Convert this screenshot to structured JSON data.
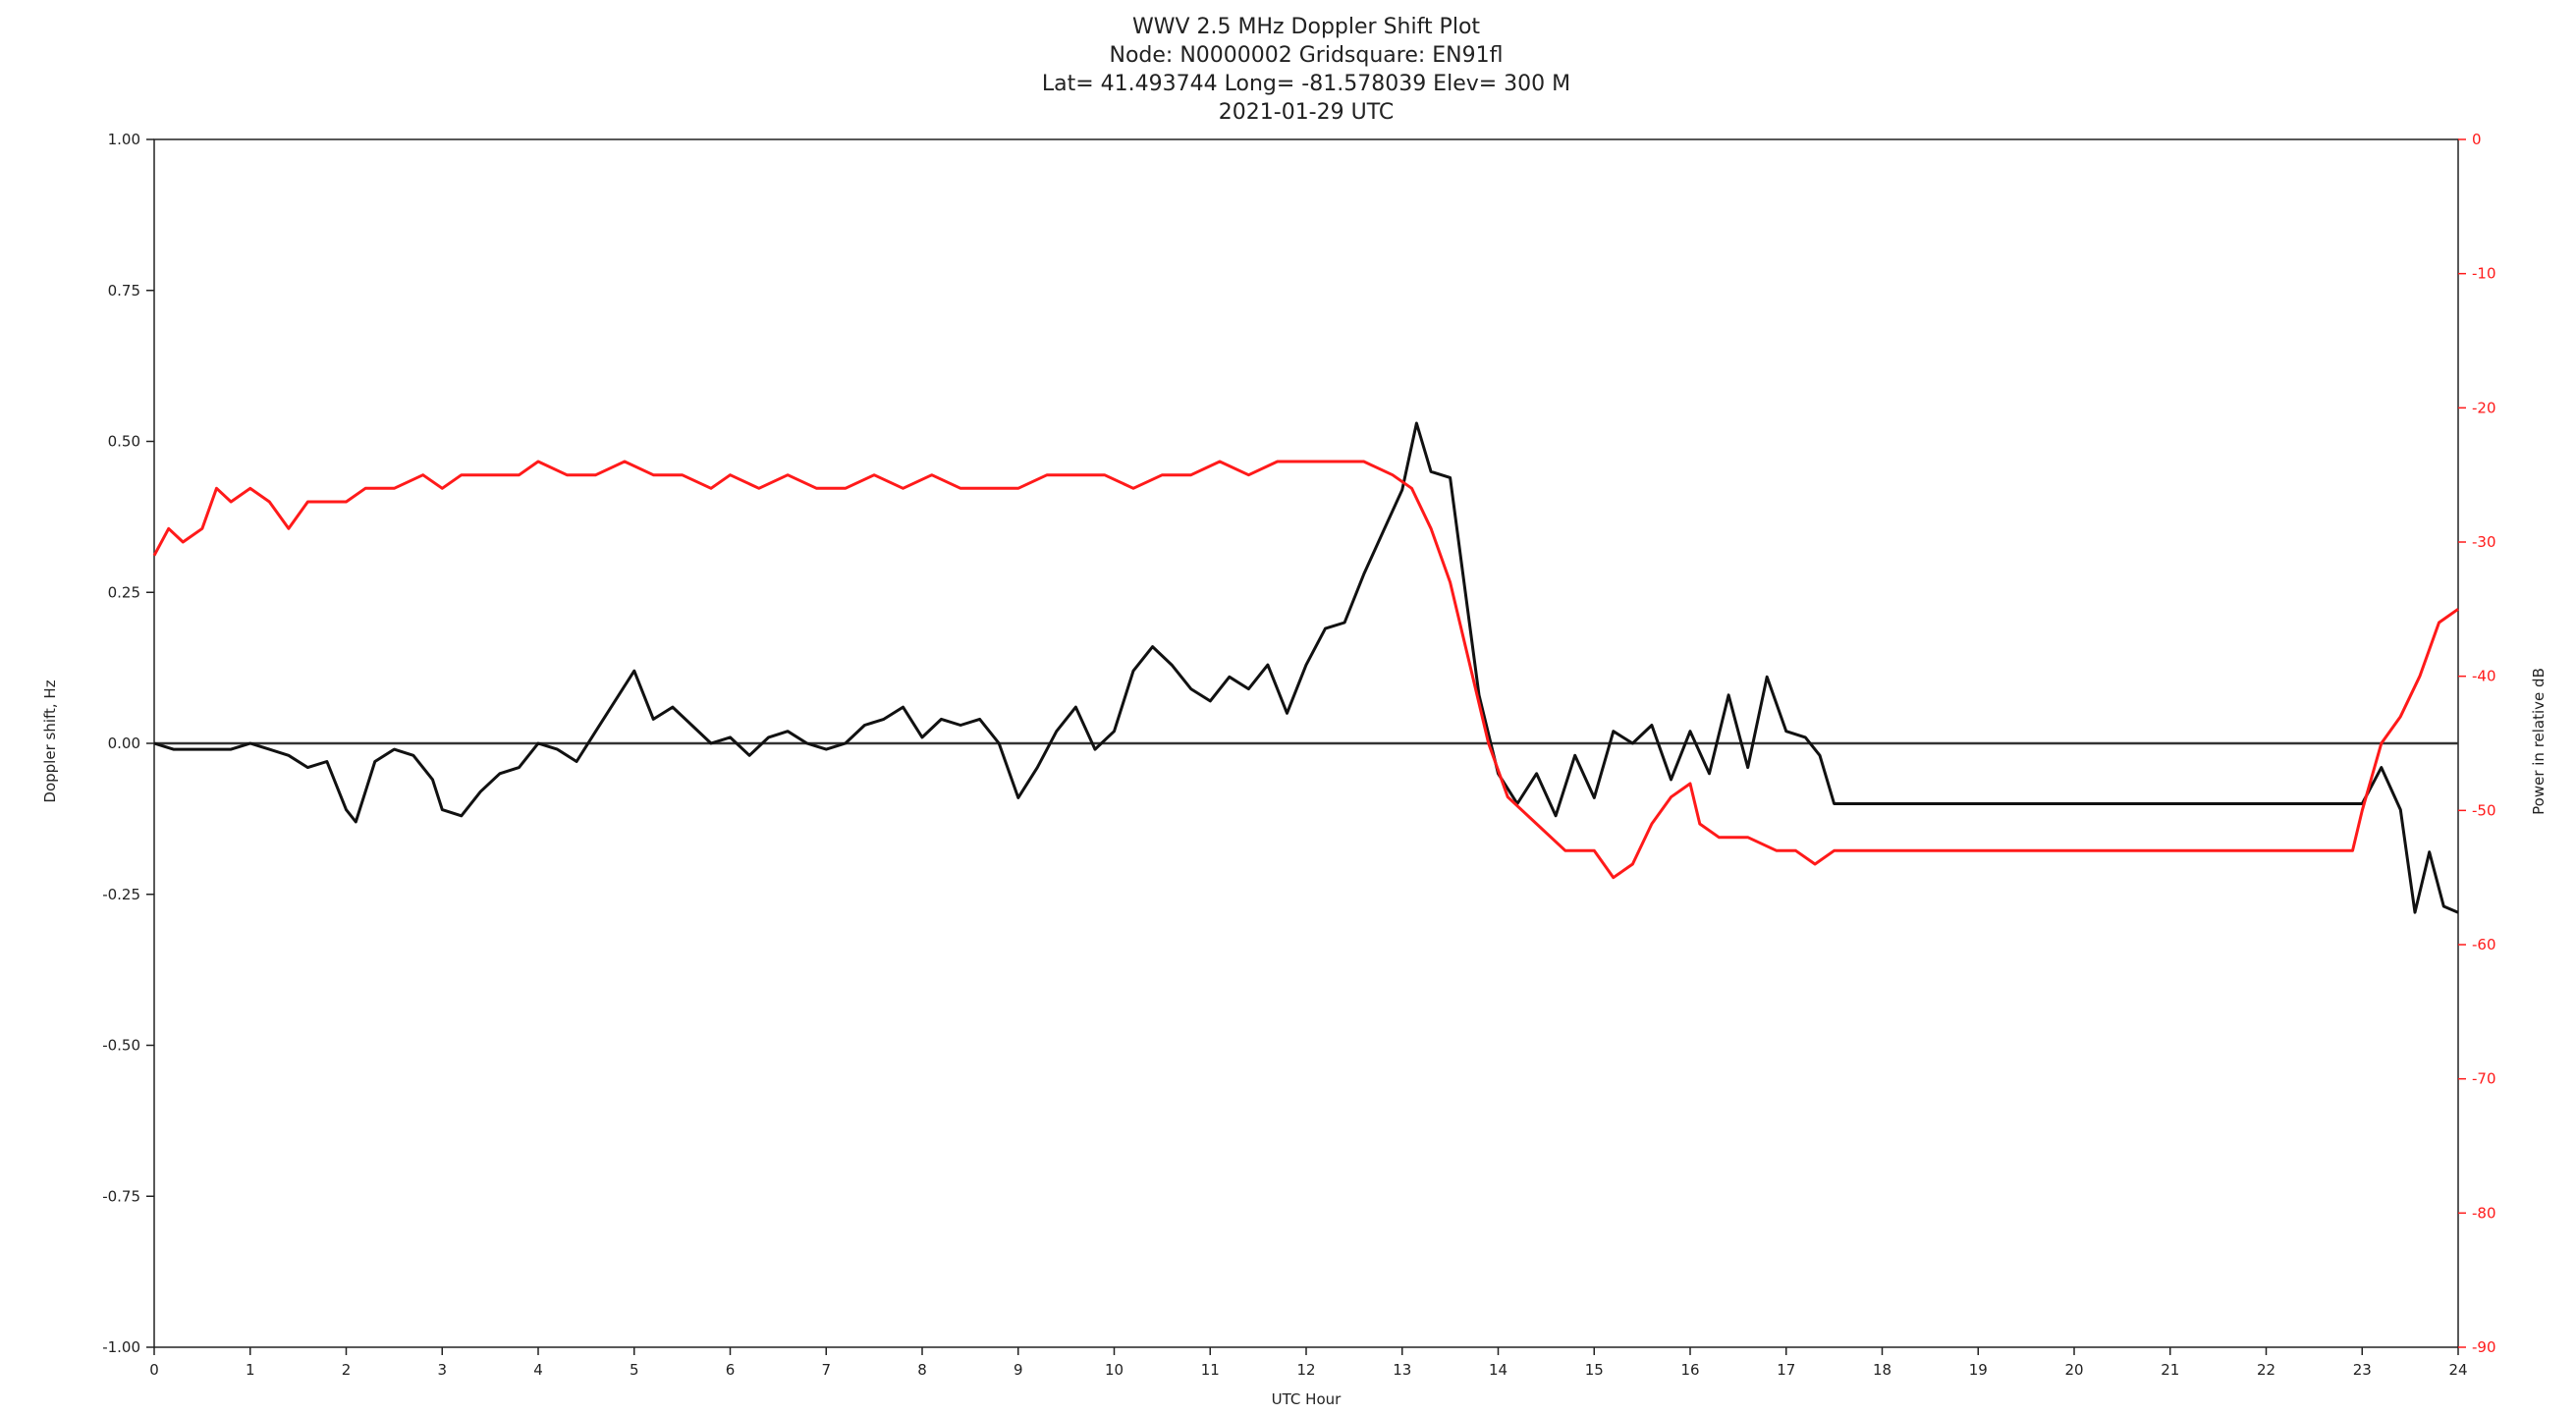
{
  "chart_data": {
    "type": "line",
    "title_lines": [
      "WWV 2.5 MHz Doppler Shift Plot",
      "Node:  N0000002     Gridsquare:  EN91fl",
      "Lat= 41.493744     Long= -81.578039     Elev=  300 M",
      "2021-01-29  UTC"
    ],
    "xlabel": "UTC Hour",
    "ylabel_left": "Doppler shift, Hz",
    "ylabel_right": "Power in relative dB",
    "xlim": [
      0,
      24
    ],
    "ylim_left": [
      -1.0,
      1.0
    ],
    "ylim_right": [
      -90,
      0
    ],
    "x_ticks": [
      "0",
      "1",
      "2",
      "3",
      "4",
      "5",
      "6",
      "7",
      "8",
      "9",
      "10",
      "11",
      "12",
      "13",
      "14",
      "15",
      "16",
      "17",
      "18",
      "19",
      "20",
      "21",
      "22",
      "23",
      "24"
    ],
    "y_ticks_left": [
      "1.00",
      "0.75",
      "0.50",
      "0.25",
      "0.00",
      "-0.25",
      "-0.50",
      "-0.75",
      "-1.00"
    ],
    "y_ticks_right": [
      "0",
      "-10",
      "-20",
      "-30",
      "-40",
      "-50",
      "-60",
      "-70",
      "-80",
      "-90"
    ],
    "grid": false,
    "reference_line": {
      "y": 0.0,
      "color": "#333333"
    },
    "colors": {
      "doppler": "#111111",
      "power": "#ff1a1a",
      "axes": "#222222",
      "right_axis_text": "#ff1a1a"
    },
    "series": [
      {
        "axis": "left",
        "color": "#111111",
        "points": [
          [
            0.0,
            0.0
          ],
          [
            0.2,
            -0.01
          ],
          [
            0.5,
            -0.01
          ],
          [
            0.8,
            -0.01
          ],
          [
            1.0,
            0.0
          ],
          [
            1.2,
            -0.01
          ],
          [
            1.4,
            -0.02
          ],
          [
            1.6,
            -0.04
          ],
          [
            1.8,
            -0.03
          ],
          [
            1.9,
            -0.07
          ],
          [
            2.0,
            -0.11
          ],
          [
            2.1,
            -0.13
          ],
          [
            2.2,
            -0.08
          ],
          [
            2.3,
            -0.03
          ],
          [
            2.5,
            -0.01
          ],
          [
            2.7,
            -0.02
          ],
          [
            2.9,
            -0.06
          ],
          [
            3.0,
            -0.11
          ],
          [
            3.2,
            -0.12
          ],
          [
            3.4,
            -0.08
          ],
          [
            3.6,
            -0.05
          ],
          [
            3.8,
            -0.04
          ],
          [
            4.0,
            0.0
          ],
          [
            4.2,
            -0.01
          ],
          [
            4.4,
            -0.03
          ],
          [
            4.6,
            0.02
          ],
          [
            4.8,
            0.07
          ],
          [
            5.0,
            0.12
          ],
          [
            5.2,
            0.04
          ],
          [
            5.4,
            0.06
          ],
          [
            5.6,
            0.03
          ],
          [
            5.8,
            0.0
          ],
          [
            6.0,
            0.01
          ],
          [
            6.2,
            -0.02
          ],
          [
            6.4,
            0.01
          ],
          [
            6.6,
            0.02
          ],
          [
            6.8,
            0.0
          ],
          [
            7.0,
            -0.01
          ],
          [
            7.2,
            0.0
          ],
          [
            7.4,
            0.03
          ],
          [
            7.6,
            0.04
          ],
          [
            7.8,
            0.06
          ],
          [
            8.0,
            0.01
          ],
          [
            8.2,
            0.04
          ],
          [
            8.4,
            0.03
          ],
          [
            8.6,
            0.04
          ],
          [
            8.8,
            0.0
          ],
          [
            9.0,
            -0.09
          ],
          [
            9.2,
            -0.04
          ],
          [
            9.4,
            0.02
          ],
          [
            9.6,
            0.06
          ],
          [
            9.8,
            -0.01
          ],
          [
            10.0,
            0.02
          ],
          [
            10.2,
            0.12
          ],
          [
            10.4,
            0.16
          ],
          [
            10.6,
            0.13
          ],
          [
            10.8,
            0.09
          ],
          [
            11.0,
            0.07
          ],
          [
            11.2,
            0.11
          ],
          [
            11.4,
            0.09
          ],
          [
            11.6,
            0.13
          ],
          [
            11.8,
            0.05
          ],
          [
            12.0,
            0.13
          ],
          [
            12.2,
            0.19
          ],
          [
            12.4,
            0.2
          ],
          [
            12.6,
            0.28
          ],
          [
            12.8,
            0.35
          ],
          [
            13.0,
            0.42
          ],
          [
            13.15,
            0.53
          ],
          [
            13.3,
            0.45
          ],
          [
            13.5,
            0.44
          ],
          [
            13.7,
            0.2
          ],
          [
            13.8,
            0.08
          ],
          [
            14.0,
            -0.05
          ],
          [
            14.2,
            -0.1
          ],
          [
            14.4,
            -0.05
          ],
          [
            14.6,
            -0.12
          ],
          [
            14.8,
            -0.02
          ],
          [
            15.0,
            -0.09
          ],
          [
            15.2,
            0.02
          ],
          [
            15.4,
            0.0
          ],
          [
            15.6,
            0.03
          ],
          [
            15.8,
            -0.06
          ],
          [
            16.0,
            0.02
          ],
          [
            16.2,
            -0.05
          ],
          [
            16.4,
            0.08
          ],
          [
            16.6,
            -0.04
          ],
          [
            16.8,
            0.11
          ],
          [
            17.0,
            0.02
          ],
          [
            17.2,
            0.01
          ],
          [
            17.35,
            -0.02
          ],
          [
            17.5,
            -0.1
          ],
          [
            18.0,
            -0.1
          ],
          [
            19.0,
            -0.1
          ],
          [
            20.0,
            -0.1
          ],
          [
            21.0,
            -0.1
          ],
          [
            22.0,
            -0.1
          ],
          [
            23.0,
            -0.1
          ],
          [
            23.2,
            -0.04
          ],
          [
            23.4,
            -0.11
          ],
          [
            23.55,
            -0.28
          ],
          [
            23.7,
            -0.18
          ],
          [
            23.85,
            -0.27
          ],
          [
            24.0,
            -0.28
          ]
        ]
      },
      {
        "axis": "right",
        "color": "#ff1a1a",
        "points": [
          [
            0.0,
            -31
          ],
          [
            0.15,
            -29
          ],
          [
            0.3,
            -30
          ],
          [
            0.5,
            -29
          ],
          [
            0.65,
            -26
          ],
          [
            0.8,
            -27
          ],
          [
            1.0,
            -26
          ],
          [
            1.2,
            -27
          ],
          [
            1.4,
            -29
          ],
          [
            1.6,
            -27
          ],
          [
            1.8,
            -27
          ],
          [
            2.0,
            -27
          ],
          [
            2.2,
            -26
          ],
          [
            2.5,
            -26
          ],
          [
            2.8,
            -25
          ],
          [
            3.0,
            -26
          ],
          [
            3.2,
            -25
          ],
          [
            3.5,
            -25
          ],
          [
            3.8,
            -25
          ],
          [
            4.0,
            -24
          ],
          [
            4.3,
            -25
          ],
          [
            4.6,
            -25
          ],
          [
            4.9,
            -24
          ],
          [
            5.2,
            -25
          ],
          [
            5.5,
            -25
          ],
          [
            5.8,
            -26
          ],
          [
            6.0,
            -25
          ],
          [
            6.3,
            -26
          ],
          [
            6.6,
            -25
          ],
          [
            6.9,
            -26
          ],
          [
            7.2,
            -26
          ],
          [
            7.5,
            -25
          ],
          [
            7.8,
            -26
          ],
          [
            8.1,
            -25
          ],
          [
            8.4,
            -26
          ],
          [
            8.7,
            -26
          ],
          [
            9.0,
            -26
          ],
          [
            9.3,
            -25
          ],
          [
            9.6,
            -25
          ],
          [
            9.9,
            -25
          ],
          [
            10.2,
            -26
          ],
          [
            10.5,
            -25
          ],
          [
            10.8,
            -25
          ],
          [
            11.1,
            -24
          ],
          [
            11.4,
            -25
          ],
          [
            11.7,
            -24
          ],
          [
            12.0,
            -24
          ],
          [
            12.3,
            -24
          ],
          [
            12.6,
            -24
          ],
          [
            12.9,
            -25
          ],
          [
            13.1,
            -26
          ],
          [
            13.3,
            -29
          ],
          [
            13.5,
            -33
          ],
          [
            13.7,
            -39
          ],
          [
            13.9,
            -45
          ],
          [
            14.1,
            -49
          ],
          [
            14.4,
            -51
          ],
          [
            14.7,
            -53
          ],
          [
            15.0,
            -53
          ],
          [
            15.2,
            -55
          ],
          [
            15.4,
            -54
          ],
          [
            15.6,
            -51
          ],
          [
            15.8,
            -49
          ],
          [
            16.0,
            -48
          ],
          [
            16.1,
            -51
          ],
          [
            16.3,
            -52
          ],
          [
            16.6,
            -52
          ],
          [
            16.9,
            -53
          ],
          [
            17.1,
            -53
          ],
          [
            17.3,
            -54
          ],
          [
            17.5,
            -53
          ],
          [
            18.0,
            -53
          ],
          [
            19.0,
            -53
          ],
          [
            20.0,
            -53
          ],
          [
            21.0,
            -53
          ],
          [
            22.0,
            -53
          ],
          [
            22.9,
            -53
          ],
          [
            23.0,
            -50
          ],
          [
            23.2,
            -45
          ],
          [
            23.4,
            -43
          ],
          [
            23.6,
            -40
          ],
          [
            23.8,
            -36
          ],
          [
            24.0,
            -35
          ]
        ]
      }
    ]
  }
}
